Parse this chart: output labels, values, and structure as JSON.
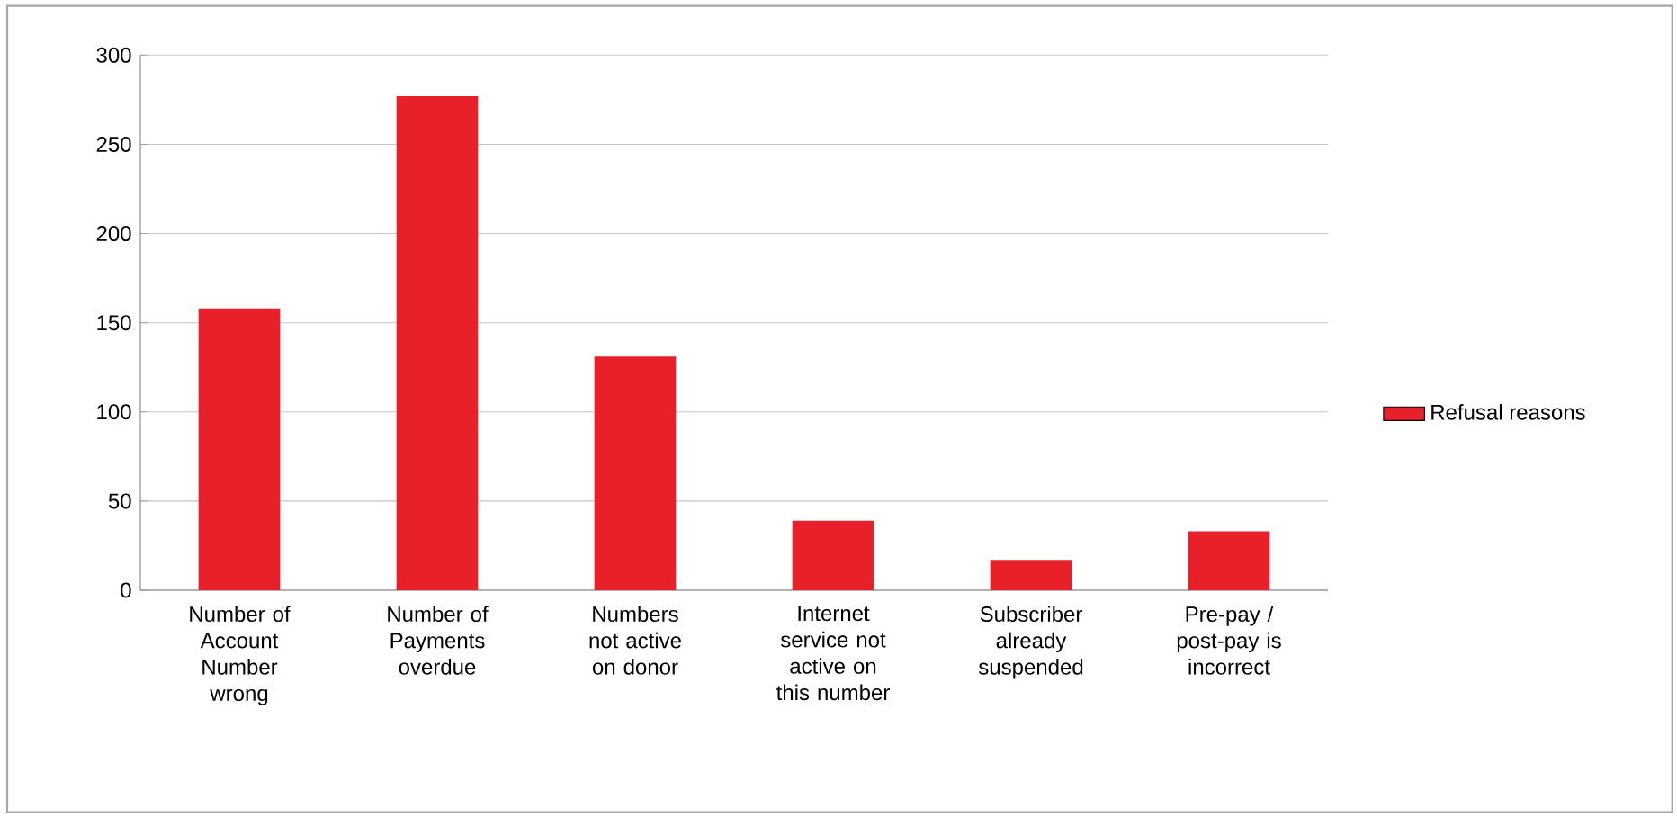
{
  "chart_data": {
    "type": "bar",
    "categories": [
      "Number of Account Number wrong",
      "Number of Payments overdue",
      "Numbers not active on donor",
      "Internet service not active on this number",
      "Subscriber already suspended",
      "Pre-pay / post-pay is incorrect"
    ],
    "series": [
      {
        "name": "Refusal reasons",
        "color": "#e8202a",
        "values": [
          158,
          277,
          131,
          39,
          17,
          33
        ]
      }
    ],
    "ylim": [
      0,
      300
    ],
    "yticks": [
      0,
      50,
      100,
      150,
      200,
      250,
      300
    ],
    "grid": "y",
    "legend": "right"
  }
}
